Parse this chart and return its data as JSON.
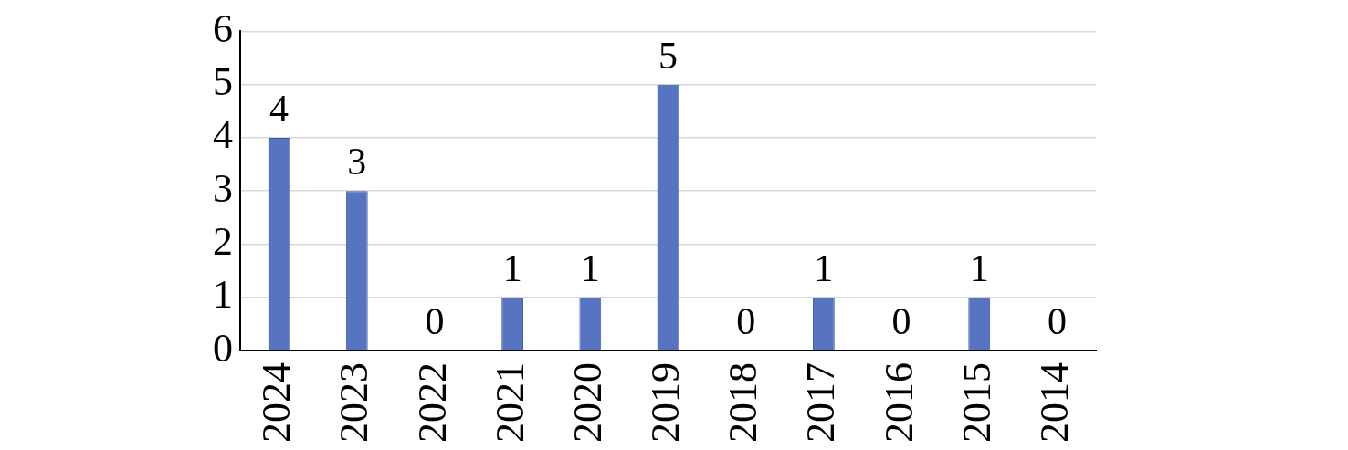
{
  "chart_data": {
    "type": "bar",
    "categories": [
      "2024",
      "2023",
      "2022",
      "2021",
      "2020",
      "2019",
      "2018",
      "2017",
      "2016",
      "2015",
      "2014"
    ],
    "values": [
      4,
      3,
      0,
      1,
      1,
      5,
      0,
      1,
      0,
      1,
      0
    ],
    "color": "#5674bf",
    "ylim": [
      0,
      6
    ],
    "yticks": [
      0,
      1,
      2,
      3,
      4,
      5,
      6
    ],
    "grid": "y",
    "data_labels": true,
    "legend": false
  }
}
